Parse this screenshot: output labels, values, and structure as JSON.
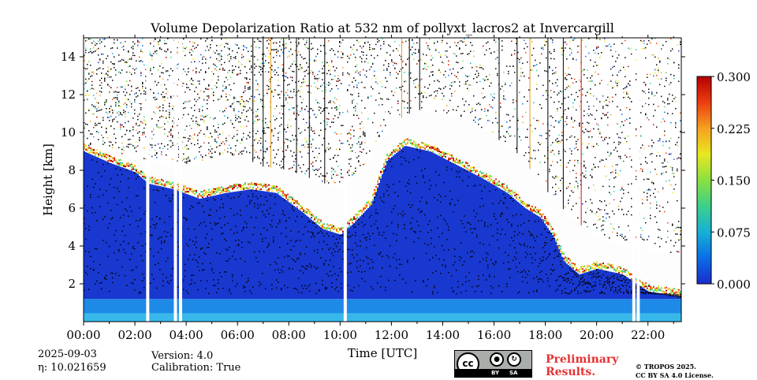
{
  "chart_data": {
    "type": "heatmap",
    "title": "Volume Depolarization Ratio at 532 nm of pollyxt_lacros2 at Invercargill",
    "xlabel": "Time [UTC]",
    "ylabel": "Height [km]",
    "x_range_hours": [
      0,
      23.3
    ],
    "ylim": [
      0,
      15
    ],
    "x_ticks": [
      {
        "label": "00:00",
        "value": 0
      },
      {
        "label": "02:00",
        "value": 2
      },
      {
        "label": "04:00",
        "value": 4
      },
      {
        "label": "06:00",
        "value": 6
      },
      {
        "label": "08:00",
        "value": 8
      },
      {
        "label": "10:00",
        "value": 10
      },
      {
        "label": "12:00",
        "value": 12
      },
      {
        "label": "14:00",
        "value": 14
      },
      {
        "label": "16:00",
        "value": 16
      },
      {
        "label": "18:00",
        "value": 18
      },
      {
        "label": "20:00",
        "value": 20
      },
      {
        "label": "22:00",
        "value": 22
      }
    ],
    "y_ticks": [
      {
        "label": "2",
        "value": 2
      },
      {
        "label": "4",
        "value": 4
      },
      {
        "label": "6",
        "value": 6
      },
      {
        "label": "8",
        "value": 8
      },
      {
        "label": "10",
        "value": 10
      },
      {
        "label": "12",
        "value": 12
      },
      {
        "label": "14",
        "value": 14
      }
    ],
    "colorbar": {
      "min": 0.0,
      "max": 0.3,
      "ticks": [
        {
          "label": "0.000",
          "value": 0.0
        },
        {
          "label": "0.075",
          "value": 0.075
        },
        {
          "label": "0.150",
          "value": 0.15
        },
        {
          "label": "0.225",
          "value": 0.225
        },
        {
          "label": "0.300",
          "value": 0.3
        }
      ],
      "colors": [
        "#1a2ccc",
        "#0a6ee6",
        "#17b0d8",
        "#3cd08a",
        "#8ae040",
        "#e8e820",
        "#f7a020",
        "#ec3d10",
        "#b40000"
      ]
    },
    "cloud_base_km": [
      {
        "t": 0.0,
        "h": 9.0
      },
      {
        "t": 1.0,
        "h": 8.4
      },
      {
        "t": 2.0,
        "h": 7.9
      },
      {
        "t": 2.5,
        "h": 7.3
      },
      {
        "t": 3.5,
        "h": 7.0
      },
      {
        "t": 4.5,
        "h": 6.5
      },
      {
        "t": 5.5,
        "h": 6.8
      },
      {
        "t": 6.5,
        "h": 7.0
      },
      {
        "t": 7.5,
        "h": 6.8
      },
      {
        "t": 8.5,
        "h": 5.8
      },
      {
        "t": 9.3,
        "h": 4.9
      },
      {
        "t": 10.0,
        "h": 4.6
      },
      {
        "t": 10.5,
        "h": 5.2
      },
      {
        "t": 11.2,
        "h": 6.2
      },
      {
        "t": 11.8,
        "h": 8.5
      },
      {
        "t": 12.5,
        "h": 9.3
      },
      {
        "t": 13.5,
        "h": 9.0
      },
      {
        "t": 14.5,
        "h": 8.3
      },
      {
        "t": 15.5,
        "h": 7.6
      },
      {
        "t": 16.5,
        "h": 6.8
      },
      {
        "t": 17.2,
        "h": 6.0
      },
      {
        "t": 17.8,
        "h": 5.5
      },
      {
        "t": 18.3,
        "h": 4.5
      },
      {
        "t": 18.7,
        "h": 3.2
      },
      {
        "t": 19.3,
        "h": 2.5
      },
      {
        "t": 20.0,
        "h": 2.8
      },
      {
        "t": 21.0,
        "h": 2.5
      },
      {
        "t": 22.0,
        "h": 1.6
      },
      {
        "t": 23.3,
        "h": 1.3
      }
    ],
    "cloud_top_km": [
      {
        "t": 0.0,
        "h": 9.3
      },
      {
        "t": 1.0,
        "h": 9.0
      },
      {
        "t": 2.0,
        "h": 8.6
      },
      {
        "t": 3.0,
        "h": 8.4
      },
      {
        "t": 4.0,
        "h": 8.3
      },
      {
        "t": 5.0,
        "h": 8.5
      },
      {
        "t": 6.0,
        "h": 8.8
      },
      {
        "t": 7.0,
        "h": 8.2
      },
      {
        "t": 8.0,
        "h": 8.0
      },
      {
        "t": 9.0,
        "h": 7.5
      },
      {
        "t": 10.0,
        "h": 7.0
      },
      {
        "t": 11.0,
        "h": 8.3
      },
      {
        "t": 12.0,
        "h": 10.5
      },
      {
        "t": 13.0,
        "h": 11.2
      },
      {
        "t": 14.0,
        "h": 11.0
      },
      {
        "t": 15.0,
        "h": 10.6
      },
      {
        "t": 16.0,
        "h": 9.8
      },
      {
        "t": 17.0,
        "h": 8.8
      },
      {
        "t": 18.0,
        "h": 7.0
      },
      {
        "t": 19.0,
        "h": 5.5
      },
      {
        "t": 20.0,
        "h": 4.5
      },
      {
        "t": 21.0,
        "h": 4.0
      },
      {
        "t": 23.3,
        "h": 3.5
      }
    ],
    "gaps_hours": [
      2.5,
      3.58,
      3.78,
      10.2,
      21.45,
      21.62
    ]
  },
  "footer": {
    "date": "2025-09-03",
    "eta": "η: 10.021659",
    "version": "Version: 4.0",
    "calibration": "Calibration: True",
    "license_cc": "cc",
    "license_by": "BY",
    "license_sa": "SA",
    "preliminary": "Preliminary\nResults.",
    "copyright": "© TROPOS 2025.\nCC BY SA 4.0 License."
  }
}
